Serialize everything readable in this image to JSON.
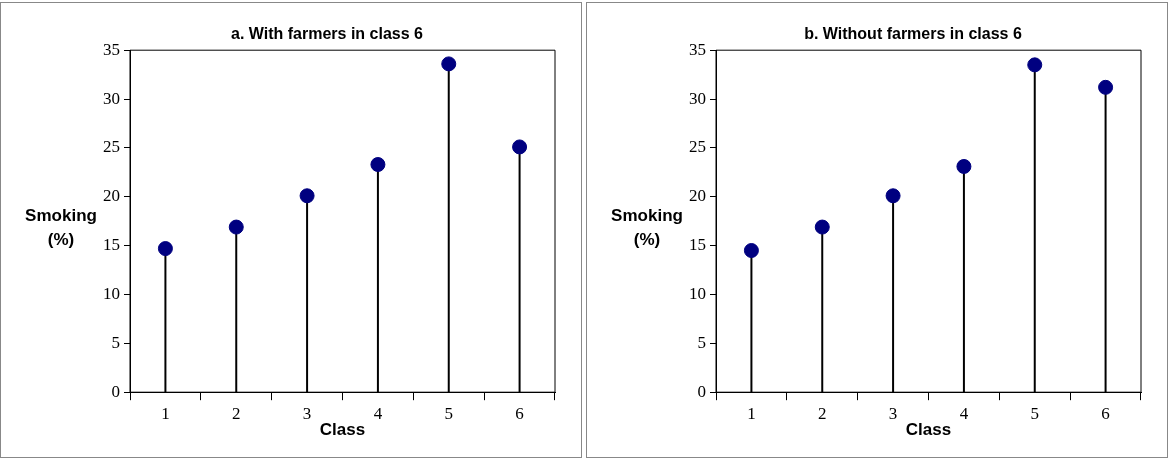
{
  "chart_data": [
    {
      "type": "lollipop",
      "title": "a. With farmers in class 6",
      "xlabel": "Class",
      "ylabel": "Smoking (%)",
      "categories": [
        "1",
        "2",
        "3",
        "4",
        "5",
        "6"
      ],
      "values": [
        14.7,
        16.9,
        20.1,
        23.3,
        33.6,
        25.1
      ],
      "color": "#000080",
      "marker": "circle",
      "ylim": [
        0,
        35
      ],
      "yticks": [
        0,
        5,
        10,
        15,
        20,
        25,
        30,
        35
      ]
    },
    {
      "type": "lollipop",
      "title": "b. Without farmers in class 6",
      "xlabel": "Class",
      "ylabel": "Smoking (%)",
      "categories": [
        "1",
        "2",
        "3",
        "4",
        "5",
        "6"
      ],
      "values": [
        14.5,
        16.9,
        20.1,
        23.1,
        33.5,
        31.2
      ],
      "color": "#000080",
      "marker": "circle",
      "ylim": [
        0,
        35
      ],
      "yticks": [
        0,
        5,
        10,
        15,
        20,
        25,
        30,
        35
      ]
    }
  ]
}
